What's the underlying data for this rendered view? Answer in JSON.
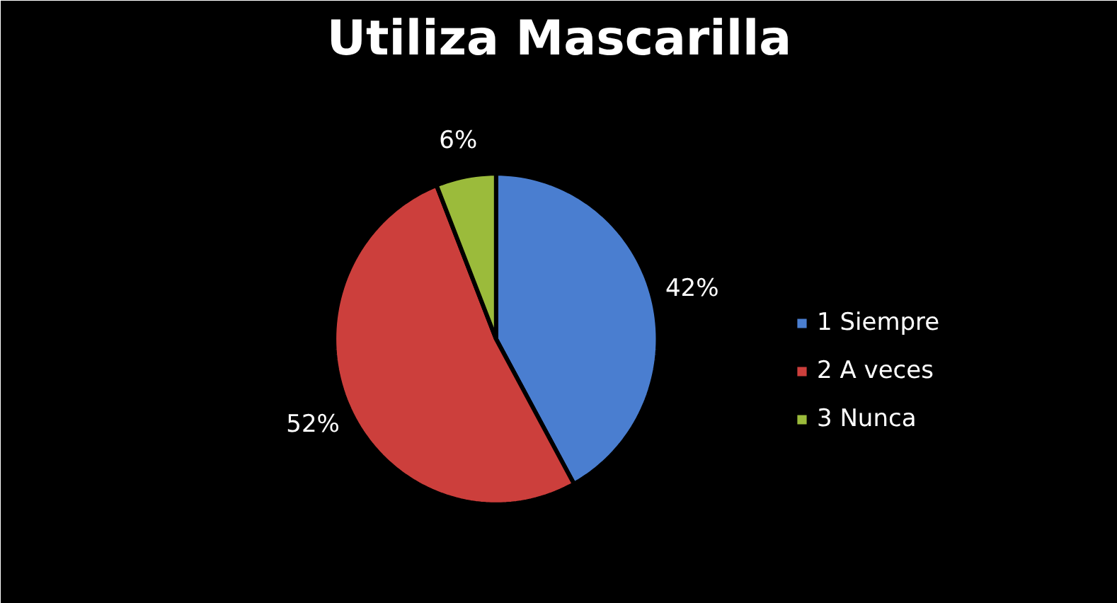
{
  "chart_data": {
    "type": "pie",
    "title": "Utiliza Mascarilla",
    "categories": [
      "1 Siempre",
      "2 A veces",
      "3 Nunca"
    ],
    "values": [
      42,
      52,
      6
    ],
    "colors": [
      "#4a7ed0",
      "#cc3f3c",
      "#9bbb3b"
    ],
    "value_labels": [
      "42%",
      "52%",
      "6%"
    ],
    "legend": "right"
  }
}
